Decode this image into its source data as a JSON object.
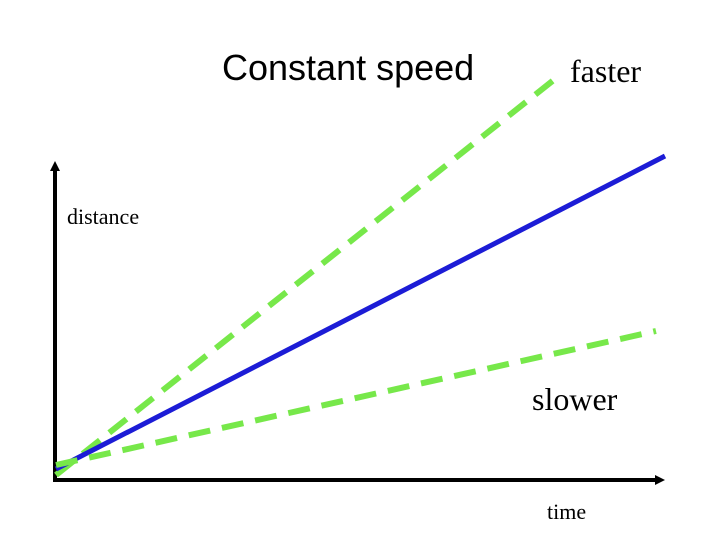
{
  "title": "Constant speed",
  "labels": {
    "faster": "faster",
    "slower": "slower",
    "distance": "distance",
    "time": "time"
  },
  "colors": {
    "background": "#ffffff",
    "axes": "#000000",
    "constant_line": "#1c1cd6",
    "dashed_lines": "#77e84a",
    "text": "#000000"
  }
}
